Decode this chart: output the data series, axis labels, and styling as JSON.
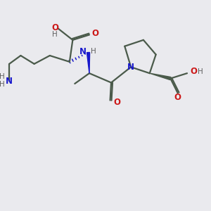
{
  "bg_color": "#eaeaee",
  "bond_color": "#4a5a4a",
  "N_color": "#1818cc",
  "O_color": "#cc1818",
  "H_color": "#606060",
  "figsize": [
    3.0,
    3.0
  ],
  "dpi": 100,
  "xlim": [
    0,
    10
  ],
  "ylim": [
    0,
    10
  ]
}
